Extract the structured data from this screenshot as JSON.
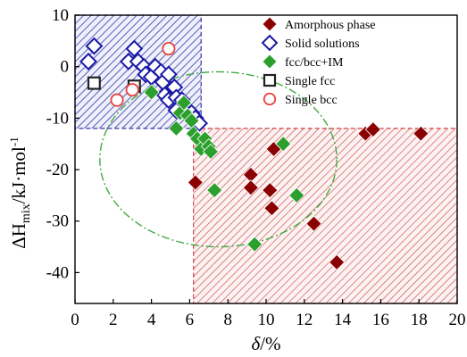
{
  "chart_data": {
    "type": "scatter",
    "title": "",
    "xlabel": "δ/%",
    "ylabel": "ΔH_mix/kJ·mol⁻¹",
    "xlim": [
      0,
      20
    ],
    "ylim": [
      -46,
      10
    ],
    "x_ticks": [
      "0",
      "2",
      "4",
      "6",
      "8",
      "10",
      "12",
      "14",
      "16",
      "18",
      "20"
    ],
    "x_tick_values": [
      0,
      2,
      4,
      6,
      8,
      10,
      12,
      14,
      16,
      18,
      20
    ],
    "y_ticks": [
      "10",
      "0",
      "-10",
      "-20",
      "-30",
      "-40"
    ],
    "y_tick_values": [
      10,
      0,
      -10,
      -20,
      -30,
      -40
    ],
    "grid": false,
    "legend_position": "top-right",
    "regions": [
      {
        "name": "solid-solution-region",
        "x": [
          0,
          6.6
        ],
        "y": [
          -12,
          10
        ],
        "color": "#3333aa",
        "fill": "hatch"
      },
      {
        "name": "amorphous-region",
        "x": [
          6.2,
          20
        ],
        "y": [
          -12,
          -46
        ],
        "color": "#cc4444",
        "fill": "hatch"
      }
    ],
    "ellipse": {
      "center": [
        7.5,
        -18
      ],
      "radii": [
        6.2,
        17
      ],
      "color": "#44aa44",
      "style": "dash-dot"
    },
    "series": [
      {
        "name": "Amorphous phase",
        "marker": "diamond-filled",
        "color": "#8b0000",
        "points": [
          [
            6.3,
            -22.5
          ],
          [
            9.2,
            -21
          ],
          [
            9.2,
            -23.5
          ],
          [
            10.2,
            -24
          ],
          [
            10.3,
            -27.5
          ],
          [
            10.4,
            -16
          ],
          [
            12.5,
            -30.5
          ],
          [
            13.7,
            -38
          ],
          [
            15.2,
            -13
          ],
          [
            15.6,
            -12.2
          ],
          [
            18.1,
            -13
          ]
        ]
      },
      {
        "name": "Solid solutions",
        "marker": "diamond-open",
        "color": "#1a1aa6",
        "points": [
          [
            0.7,
            1
          ],
          [
            1.0,
            4
          ],
          [
            2.8,
            1
          ],
          [
            3.1,
            3.5
          ],
          [
            3.3,
            1
          ],
          [
            3.6,
            0
          ],
          [
            3.7,
            -1.5
          ],
          [
            4.0,
            -2
          ],
          [
            4.2,
            0
          ],
          [
            4.5,
            -1
          ],
          [
            4.6,
            -3
          ],
          [
            4.7,
            -5.5
          ],
          [
            4.9,
            -1.5
          ],
          [
            4.9,
            -6.5
          ],
          [
            5.2,
            -4
          ],
          [
            5.3,
            -6
          ],
          [
            5.3,
            -8.5
          ],
          [
            5.6,
            -6.5
          ],
          [
            5.8,
            -9
          ],
          [
            6.1,
            -9
          ],
          [
            6.3,
            -10
          ],
          [
            6.5,
            -11
          ]
        ]
      },
      {
        "name": "fcc/bcc+IM",
        "marker": "diamond-filled",
        "color": "#2ca02c",
        "points": [
          [
            4.0,
            -5
          ],
          [
            5.3,
            -12
          ],
          [
            5.5,
            -9
          ],
          [
            5.7,
            -7
          ],
          [
            5.9,
            -9.5
          ],
          [
            6.1,
            -10.5
          ],
          [
            6.2,
            -13
          ],
          [
            6.4,
            -14
          ],
          [
            6.6,
            -16
          ],
          [
            6.8,
            -14
          ],
          [
            7.0,
            -15.5
          ],
          [
            7.1,
            -16.5
          ],
          [
            7.3,
            -24
          ],
          [
            9.4,
            -34.5
          ],
          [
            10.9,
            -15
          ],
          [
            11.6,
            -25
          ]
        ]
      },
      {
        "name": "Single fcc",
        "marker": "square-open",
        "color": "#222222",
        "points": [
          [
            1.0,
            -3.2
          ],
          [
            3.1,
            -3.8
          ]
        ]
      },
      {
        "name": "Single bcc",
        "marker": "circle-open",
        "color": "#e8413a",
        "points": [
          [
            2.2,
            -6.5
          ],
          [
            3.0,
            -4.5
          ],
          [
            4.9,
            3.5
          ]
        ]
      }
    ]
  }
}
